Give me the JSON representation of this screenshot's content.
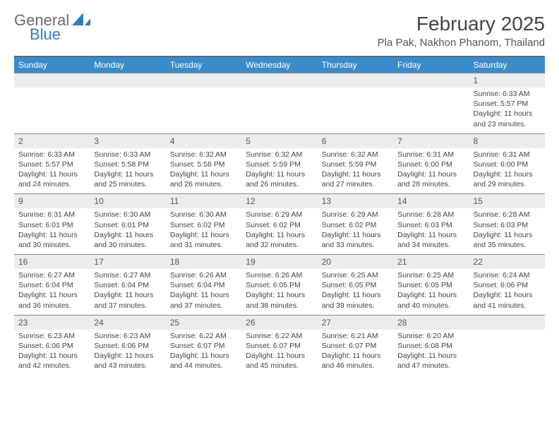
{
  "brand": {
    "name_part1": "General",
    "name_part2": "Blue",
    "logo_color": "#2f7bbf",
    "text_color": "#6a6a6a"
  },
  "title": {
    "month": "February 2025",
    "location": "Pla Pak, Nakhon Phanom, Thailand"
  },
  "colors": {
    "header_bg": "#3b8bc9",
    "header_text": "#ffffff",
    "daynum_bg": "#ececec",
    "top_rule": "#5a6a7a",
    "row_rule": "#7b8a99",
    "cell_text": "#444444"
  },
  "dayHeaders": [
    "Sunday",
    "Monday",
    "Tuesday",
    "Wednesday",
    "Thursday",
    "Friday",
    "Saturday"
  ],
  "weeks": [
    [
      {
        "n": "",
        "lines": []
      },
      {
        "n": "",
        "lines": []
      },
      {
        "n": "",
        "lines": []
      },
      {
        "n": "",
        "lines": []
      },
      {
        "n": "",
        "lines": []
      },
      {
        "n": "",
        "lines": []
      },
      {
        "n": "1",
        "lines": [
          "Sunrise: 6:33 AM",
          "Sunset: 5:57 PM",
          "Daylight: 11 hours and 23 minutes."
        ]
      }
    ],
    [
      {
        "n": "2",
        "lines": [
          "Sunrise: 6:33 AM",
          "Sunset: 5:57 PM",
          "Daylight: 11 hours and 24 minutes."
        ]
      },
      {
        "n": "3",
        "lines": [
          "Sunrise: 6:33 AM",
          "Sunset: 5:58 PM",
          "Daylight: 11 hours and 25 minutes."
        ]
      },
      {
        "n": "4",
        "lines": [
          "Sunrise: 6:32 AM",
          "Sunset: 5:58 PM",
          "Daylight: 11 hours and 26 minutes."
        ]
      },
      {
        "n": "5",
        "lines": [
          "Sunrise: 6:32 AM",
          "Sunset: 5:59 PM",
          "Daylight: 11 hours and 26 minutes."
        ]
      },
      {
        "n": "6",
        "lines": [
          "Sunrise: 6:32 AM",
          "Sunset: 5:59 PM",
          "Daylight: 11 hours and 27 minutes."
        ]
      },
      {
        "n": "7",
        "lines": [
          "Sunrise: 6:31 AM",
          "Sunset: 6:00 PM",
          "Daylight: 11 hours and 28 minutes."
        ]
      },
      {
        "n": "8",
        "lines": [
          "Sunrise: 6:31 AM",
          "Sunset: 6:00 PM",
          "Daylight: 11 hours and 29 minutes."
        ]
      }
    ],
    [
      {
        "n": "9",
        "lines": [
          "Sunrise: 6:31 AM",
          "Sunset: 6:01 PM",
          "Daylight: 11 hours and 30 minutes."
        ]
      },
      {
        "n": "10",
        "lines": [
          "Sunrise: 6:30 AM",
          "Sunset: 6:01 PM",
          "Daylight: 11 hours and 30 minutes."
        ]
      },
      {
        "n": "11",
        "lines": [
          "Sunrise: 6:30 AM",
          "Sunset: 6:02 PM",
          "Daylight: 11 hours and 31 minutes."
        ]
      },
      {
        "n": "12",
        "lines": [
          "Sunrise: 6:29 AM",
          "Sunset: 6:02 PM",
          "Daylight: 11 hours and 32 minutes."
        ]
      },
      {
        "n": "13",
        "lines": [
          "Sunrise: 6:29 AM",
          "Sunset: 6:02 PM",
          "Daylight: 11 hours and 33 minutes."
        ]
      },
      {
        "n": "14",
        "lines": [
          "Sunrise: 6:28 AM",
          "Sunset: 6:03 PM",
          "Daylight: 11 hours and 34 minutes."
        ]
      },
      {
        "n": "15",
        "lines": [
          "Sunrise: 6:28 AM",
          "Sunset: 6:03 PM",
          "Daylight: 11 hours and 35 minutes."
        ]
      }
    ],
    [
      {
        "n": "16",
        "lines": [
          "Sunrise: 6:27 AM",
          "Sunset: 6:04 PM",
          "Daylight: 11 hours and 36 minutes."
        ]
      },
      {
        "n": "17",
        "lines": [
          "Sunrise: 6:27 AM",
          "Sunset: 6:04 PM",
          "Daylight: 11 hours and 37 minutes."
        ]
      },
      {
        "n": "18",
        "lines": [
          "Sunrise: 6:26 AM",
          "Sunset: 6:04 PM",
          "Daylight: 11 hours and 37 minutes."
        ]
      },
      {
        "n": "19",
        "lines": [
          "Sunrise: 6:26 AM",
          "Sunset: 6:05 PM",
          "Daylight: 11 hours and 38 minutes."
        ]
      },
      {
        "n": "20",
        "lines": [
          "Sunrise: 6:25 AM",
          "Sunset: 6:05 PM",
          "Daylight: 11 hours and 39 minutes."
        ]
      },
      {
        "n": "21",
        "lines": [
          "Sunrise: 6:25 AM",
          "Sunset: 6:05 PM",
          "Daylight: 11 hours and 40 minutes."
        ]
      },
      {
        "n": "22",
        "lines": [
          "Sunrise: 6:24 AM",
          "Sunset: 6:06 PM",
          "Daylight: 11 hours and 41 minutes."
        ]
      }
    ],
    [
      {
        "n": "23",
        "lines": [
          "Sunrise: 6:23 AM",
          "Sunset: 6:06 PM",
          "Daylight: 11 hours and 42 minutes."
        ]
      },
      {
        "n": "24",
        "lines": [
          "Sunrise: 6:23 AM",
          "Sunset: 6:06 PM",
          "Daylight: 11 hours and 43 minutes."
        ]
      },
      {
        "n": "25",
        "lines": [
          "Sunrise: 6:22 AM",
          "Sunset: 6:07 PM",
          "Daylight: 11 hours and 44 minutes."
        ]
      },
      {
        "n": "26",
        "lines": [
          "Sunrise: 6:22 AM",
          "Sunset: 6:07 PM",
          "Daylight: 11 hours and 45 minutes."
        ]
      },
      {
        "n": "27",
        "lines": [
          "Sunrise: 6:21 AM",
          "Sunset: 6:07 PM",
          "Daylight: 11 hours and 46 minutes."
        ]
      },
      {
        "n": "28",
        "lines": [
          "Sunrise: 6:20 AM",
          "Sunset: 6:08 PM",
          "Daylight: 11 hours and 47 minutes."
        ]
      },
      {
        "n": "",
        "lines": []
      }
    ]
  ]
}
